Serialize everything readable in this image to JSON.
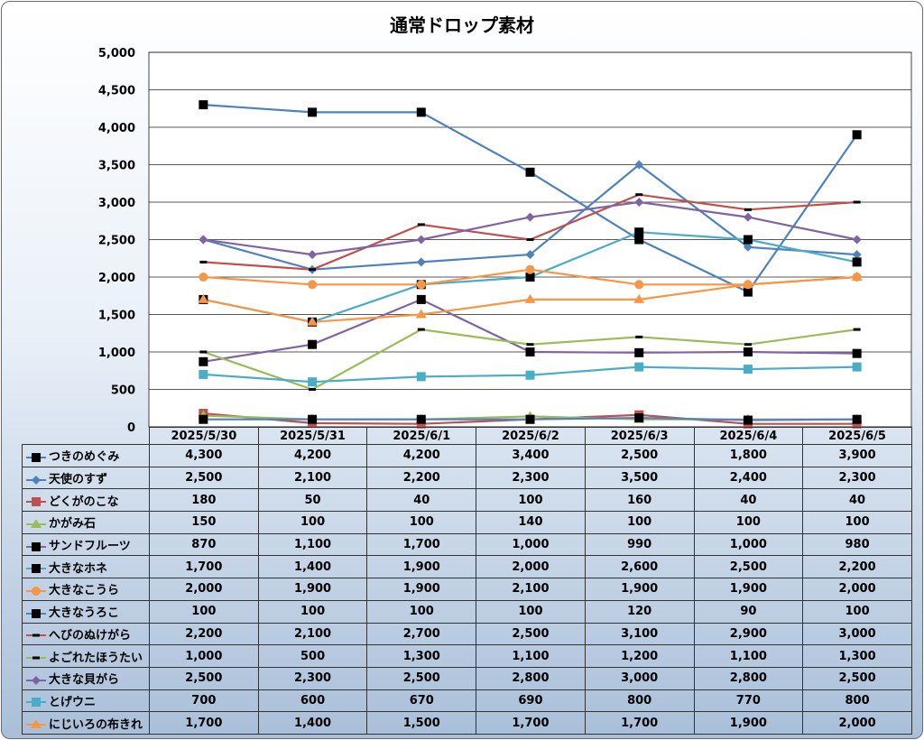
{
  "chart_data": {
    "type": "line",
    "title": "通常ドロップ素材",
    "categories": [
      "2025/5/30",
      "2025/5/31",
      "2025/6/1",
      "2025/6/2",
      "2025/6/3",
      "2025/6/4",
      "2025/6/5"
    ],
    "ylim": [
      0,
      5000
    ],
    "yticks": [
      "0",
      "500",
      "1,000",
      "1,500",
      "2,000",
      "2,500",
      "3,000",
      "3,500",
      "4,000",
      "4,500",
      "5,000"
    ],
    "grid": true,
    "legend": "data-table",
    "series": [
      {
        "name": "つきのめぐみ",
        "color": "#4f81bd",
        "marker": "square-black",
        "values": [
          4300,
          4200,
          4200,
          3400,
          2500,
          1800,
          3900
        ],
        "labels": [
          "4,300",
          "4,200",
          "4,200",
          "3,400",
          "2,500",
          "1,800",
          "3,900"
        ]
      },
      {
        "name": "天使のすず",
        "color": "#4f81bd",
        "marker": "diamond",
        "values": [
          2500,
          2100,
          2200,
          2300,
          3500,
          2400,
          2300
        ],
        "labels": [
          "2,500",
          "2,100",
          "2,200",
          "2,300",
          "3,500",
          "2,400",
          "2,300"
        ]
      },
      {
        "name": "どくがのこな",
        "color": "#c0504d",
        "marker": "square",
        "values": [
          180,
          50,
          40,
          100,
          160,
          40,
          40
        ],
        "labels": [
          "180",
          "50",
          "40",
          "100",
          "160",
          "40",
          "40"
        ]
      },
      {
        "name": "かがみ石",
        "color": "#9bbb59",
        "marker": "triangle",
        "values": [
          150,
          100,
          100,
          140,
          100,
          100,
          100
        ],
        "labels": [
          "150",
          "100",
          "100",
          "140",
          "100",
          "100",
          "100"
        ]
      },
      {
        "name": "サンドフルーツ",
        "color": "#8064a2",
        "marker": "square-black",
        "values": [
          870,
          1100,
          1700,
          1000,
          990,
          1000,
          980
        ],
        "labels": [
          "870",
          "1,100",
          "1,700",
          "1,000",
          "990",
          "1,000",
          "980"
        ]
      },
      {
        "name": "大きなホネ",
        "color": "#4bacc6",
        "marker": "square-black",
        "values": [
          1700,
          1400,
          1900,
          2000,
          2600,
          2500,
          2200
        ],
        "labels": [
          "1,700",
          "1,400",
          "1,900",
          "2,000",
          "2,600",
          "2,500",
          "2,200"
        ]
      },
      {
        "name": "大きなこうら",
        "color": "#f79646",
        "marker": "circle",
        "values": [
          2000,
          1900,
          1900,
          2100,
          1900,
          1900,
          2000
        ],
        "labels": [
          "2,000",
          "1,900",
          "1,900",
          "2,100",
          "1,900",
          "1,900",
          "2,000"
        ]
      },
      {
        "name": "大きなうろこ",
        "color": "#4f81bd",
        "marker": "square-black",
        "values": [
          100,
          100,
          100,
          100,
          120,
          90,
          100
        ],
        "labels": [
          "100",
          "100",
          "100",
          "100",
          "120",
          "90",
          "100"
        ]
      },
      {
        "name": "へびのぬけがら",
        "color": "#c0504d",
        "marker": "dash",
        "values": [
          2200,
          2100,
          2700,
          2500,
          3100,
          2900,
          3000
        ],
        "labels": [
          "2,200",
          "2,100",
          "2,700",
          "2,500",
          "3,100",
          "2,900",
          "3,000"
        ]
      },
      {
        "name": "よごれたほうたい",
        "color": "#9bbb59",
        "marker": "dash",
        "values": [
          1000,
          500,
          1300,
          1100,
          1200,
          1100,
          1300
        ],
        "labels": [
          "1,000",
          "500",
          "1,300",
          "1,100",
          "1,200",
          "1,100",
          "1,300"
        ]
      },
      {
        "name": "大きな貝がら",
        "color": "#8064a2",
        "marker": "diamond",
        "values": [
          2500,
          2300,
          2500,
          2800,
          3000,
          2800,
          2500
        ],
        "labels": [
          "2,500",
          "2,300",
          "2,500",
          "2,800",
          "3,000",
          "2,800",
          "2,500"
        ]
      },
      {
        "name": "とげウニ",
        "color": "#4bacc6",
        "marker": "square",
        "values": [
          700,
          600,
          670,
          690,
          800,
          770,
          800
        ],
        "labels": [
          "700",
          "600",
          "670",
          "690",
          "800",
          "770",
          "800"
        ]
      },
      {
        "name": "にじいろの布きれ",
        "color": "#f79646",
        "marker": "triangle",
        "values": [
          1700,
          1400,
          1500,
          1700,
          1700,
          1900,
          2000
        ],
        "labels": [
          "1,700",
          "1,400",
          "1,500",
          "1,700",
          "1,700",
          "1,900",
          "2,000"
        ]
      }
    ]
  }
}
